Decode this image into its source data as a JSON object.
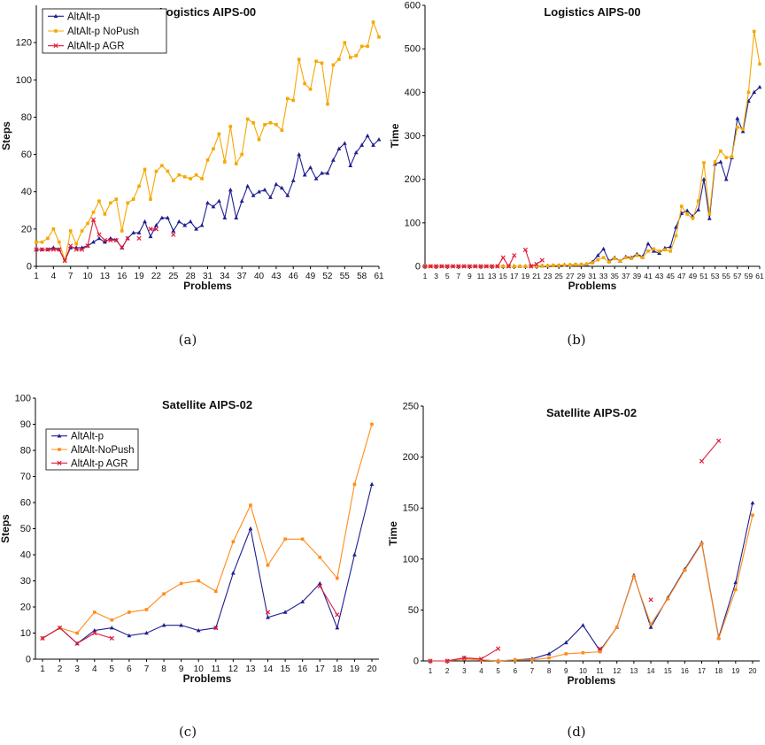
{
  "captions": [
    "(a)",
    "(b)",
    "(c)",
    "(d)"
  ],
  "chart_data": [
    {
      "type": "line",
      "title": "Logistics AIPS-00",
      "xlabel": "Problems",
      "ylabel": "Steps",
      "ylim": [
        0,
        140
      ],
      "yticks": [
        0,
        20,
        40,
        60,
        80,
        100,
        120
      ],
      "x": [
        1,
        2,
        3,
        4,
        5,
        6,
        7,
        8,
        9,
        10,
        11,
        12,
        13,
        14,
        15,
        16,
        17,
        18,
        19,
        20,
        21,
        22,
        23,
        24,
        25,
        26,
        27,
        28,
        29,
        30,
        31,
        32,
        33,
        34,
        35,
        36,
        37,
        38,
        39,
        40,
        41,
        42,
        43,
        44,
        45,
        46,
        47,
        48,
        49,
        50,
        51,
        52,
        53,
        54,
        55,
        56,
        57,
        58,
        59,
        60,
        61
      ],
      "xticks": [
        1,
        4,
        7,
        10,
        13,
        16,
        19,
        22,
        25,
        28,
        31,
        34,
        37,
        40,
        43,
        46,
        49,
        52,
        55,
        58,
        61
      ],
      "legend": "top-left",
      "series": [
        {
          "name": "AltAlt-p",
          "color": "#1f1f8f",
          "marker": "triangle",
          "values": [
            9,
            9,
            9,
            10,
            9,
            3,
            10,
            10,
            10,
            11,
            13,
            15,
            13,
            15,
            14,
            10,
            15,
            18,
            18,
            24,
            16,
            22,
            26,
            26,
            19,
            24,
            22,
            24,
            20,
            22,
            34,
            32,
            35,
            26,
            41,
            26,
            35,
            43,
            38,
            40,
            41,
            37,
            44,
            42,
            38,
            46,
            60,
            49,
            53,
            47,
            50,
            50,
            57,
            63,
            66,
            54,
            61,
            65,
            70,
            65,
            68
          ]
        },
        {
          "name": "AltAlt-p NoPush",
          "color": "#f5a800",
          "marker": "square",
          "values": [
            13,
            13,
            15,
            20,
            13,
            3,
            19,
            12,
            19,
            23,
            29,
            35,
            28,
            34,
            36,
            19,
            34,
            36,
            43,
            52,
            36,
            51,
            54,
            51,
            46,
            49,
            48,
            47,
            49,
            47,
            57,
            63,
            71,
            56,
            75,
            55,
            60,
            79,
            77,
            68,
            76,
            77,
            76,
            73,
            90,
            89,
            111,
            98,
            95,
            110,
            109,
            87,
            108,
            111,
            120,
            112,
            113,
            118,
            118,
            131,
            123
          ]
        },
        {
          "name": "AltAlt-p AGR",
          "color": "#e01a3c",
          "marker": "x",
          "values": [
            9,
            9,
            9,
            9,
            9,
            3,
            11,
            9,
            9,
            11,
            25,
            17,
            14,
            14,
            14,
            10,
            15,
            null,
            15,
            null,
            20,
            20,
            null,
            null,
            17,
            null,
            null,
            null,
            null,
            null,
            null,
            null,
            null,
            null,
            null,
            null,
            null,
            null,
            null,
            null,
            null,
            null,
            null,
            null,
            null,
            null,
            null,
            null,
            null,
            null,
            null,
            null,
            null,
            null,
            null,
            null,
            null,
            null,
            null,
            null,
            null
          ]
        }
      ]
    },
    {
      "type": "line",
      "title": "Logistics AIPS-00",
      "xlabel": "Problems",
      "ylabel": "Time",
      "ylim": [
        0,
        600
      ],
      "yticks": [
        0,
        100,
        200,
        300,
        400,
        500,
        600
      ],
      "x": [
        1,
        2,
        3,
        4,
        5,
        6,
        7,
        8,
        9,
        10,
        11,
        12,
        13,
        14,
        15,
        16,
        17,
        18,
        19,
        20,
        21,
        22,
        23,
        24,
        25,
        26,
        27,
        28,
        29,
        30,
        31,
        32,
        33,
        34,
        35,
        36,
        37,
        38,
        39,
        40,
        41,
        42,
        43,
        44,
        45,
        46,
        47,
        48,
        49,
        50,
        51,
        52,
        53,
        54,
        55,
        56,
        57,
        58,
        59,
        60,
        61
      ],
      "xticks": [
        1,
        3,
        5,
        7,
        9,
        11,
        13,
        15,
        17,
        19,
        21,
        23,
        25,
        27,
        29,
        31,
        33,
        35,
        37,
        39,
        41,
        43,
        45,
        47,
        49,
        51,
        53,
        55,
        57,
        59,
        61
      ],
      "legend": "none",
      "series": [
        {
          "name": "AltAlt-p",
          "color": "#1f1f8f",
          "marker": "triangle",
          "values": [
            0,
            0,
            0,
            0,
            0,
            0,
            0,
            0,
            0,
            0,
            0,
            0,
            0,
            0,
            0,
            0,
            0,
            0,
            0,
            0,
            0,
            1,
            1,
            2,
            2,
            3,
            3,
            4,
            4,
            5,
            10,
            25,
            40,
            12,
            20,
            12,
            22,
            20,
            28,
            22,
            52,
            35,
            30,
            42,
            45,
            90,
            122,
            128,
            115,
            130,
            200,
            110,
            235,
            240,
            200,
            250,
            340,
            310,
            380,
            400,
            412
          ]
        },
        {
          "name": "AltAlt-p NoPush",
          "color": "#f5a800",
          "marker": "square",
          "values": [
            0,
            0,
            0,
            0,
            0,
            0,
            0,
            0,
            0,
            0,
            0,
            0,
            0,
            0,
            0,
            0,
            0,
            0,
            0,
            0,
            0,
            1,
            1,
            2,
            2,
            3,
            3,
            4,
            4,
            5,
            8,
            15,
            20,
            10,
            18,
            12,
            20,
            18,
            25,
            20,
            35,
            40,
            35,
            38,
            35,
            70,
            138,
            120,
            110,
            150,
            238,
            120,
            240,
            265,
            250,
            252,
            320,
            315,
            400,
            540,
            465
          ]
        },
        {
          "name": "AltAlt-p AGR",
          "color": "#e01a3c",
          "marker": "x",
          "values": [
            0,
            0,
            0,
            0,
            0,
            0,
            0,
            0,
            0,
            0,
            0,
            0,
            0,
            0,
            20,
            0,
            25,
            null,
            38,
            0,
            5,
            14,
            null,
            null,
            null,
            null,
            null,
            null,
            null,
            null,
            null,
            null,
            null,
            null,
            null,
            null,
            null,
            null,
            null,
            null,
            null,
            null,
            null,
            null,
            null,
            null,
            null,
            null,
            null,
            null,
            null,
            null,
            null,
            null,
            null,
            null,
            null,
            null,
            null,
            null,
            null
          ]
        }
      ]
    },
    {
      "type": "line",
      "title": "Satellite AIPS-02",
      "xlabel": "Problems",
      "ylabel": "Steps",
      "ylim": [
        0,
        100
      ],
      "yticks": [
        0,
        10,
        20,
        30,
        40,
        50,
        60,
        70,
        80,
        90,
        100
      ],
      "x": [
        1,
        2,
        3,
        4,
        5,
        6,
        7,
        8,
        9,
        10,
        11,
        12,
        13,
        14,
        15,
        16,
        17,
        18,
        19,
        20
      ],
      "xticks": [
        1,
        2,
        3,
        4,
        5,
        6,
        7,
        8,
        9,
        10,
        11,
        12,
        13,
        14,
        15,
        16,
        17,
        18,
        19,
        20
      ],
      "legend": "top-left",
      "series": [
        {
          "name": "AltAlt-p",
          "color": "#1f1f8f",
          "marker": "triangle",
          "values": [
            8,
            12,
            6,
            11,
            12,
            9,
            10,
            13,
            13,
            11,
            12,
            33,
            50,
            16,
            18,
            22,
            29,
            12,
            40,
            67
          ]
        },
        {
          "name": "AltAlt-NoPush",
          "color": "#ff8c1a",
          "marker": "square",
          "values": [
            8,
            12,
            10,
            18,
            15,
            18,
            19,
            25,
            29,
            30,
            26,
            45,
            59,
            36,
            46,
            46,
            39,
            31,
            67,
            90
          ]
        },
        {
          "name": "AltAlt-p AGR",
          "color": "#e01a3c",
          "marker": "x",
          "values": [
            8,
            12,
            6,
            10,
            8,
            null,
            null,
            null,
            null,
            null,
            12,
            null,
            null,
            18,
            null,
            null,
            28,
            17,
            null,
            null
          ]
        }
      ]
    },
    {
      "type": "line",
      "title": "Satellite AIPS-02",
      "xlabel": "Problems",
      "ylabel": "Time",
      "ylim": [
        0,
        250
      ],
      "yticks": [
        0,
        50,
        100,
        150,
        200,
        250
      ],
      "x": [
        1,
        2,
        3,
        4,
        5,
        6,
        7,
        8,
        9,
        10,
        11,
        12,
        13,
        14,
        15,
        16,
        17,
        18,
        19,
        20
      ],
      "xticks": [
        1,
        2,
        3,
        4,
        5,
        6,
        7,
        8,
        9,
        10,
        11,
        12,
        13,
        14,
        15,
        16,
        17,
        18,
        19,
        20
      ],
      "legend": "none",
      "series": [
        {
          "name": "AltAlt-p",
          "color": "#1f1f8f",
          "marker": "triangle",
          "values": [
            0,
            0,
            3,
            1,
            0,
            1,
            2,
            7,
            18,
            35,
            10,
            33,
            84,
            33,
            62,
            90,
            116,
            23,
            77,
            155
          ]
        },
        {
          "name": "AltAlt-NoPush",
          "color": "#ff8c1a",
          "marker": "square",
          "values": [
            0,
            0,
            2,
            1,
            0,
            1,
            1,
            3,
            7,
            8,
            9,
            33,
            83,
            36,
            61,
            89,
            115,
            22,
            70,
            143
          ]
        },
        {
          "name": "AltAlt-p AGR",
          "color": "#e01a3c",
          "marker": "x",
          "values": [
            0,
            0,
            3,
            2,
            12,
            null,
            null,
            null,
            null,
            null,
            12,
            null,
            null,
            60,
            null,
            null,
            196,
            216,
            null,
            null
          ]
        }
      ]
    }
  ]
}
